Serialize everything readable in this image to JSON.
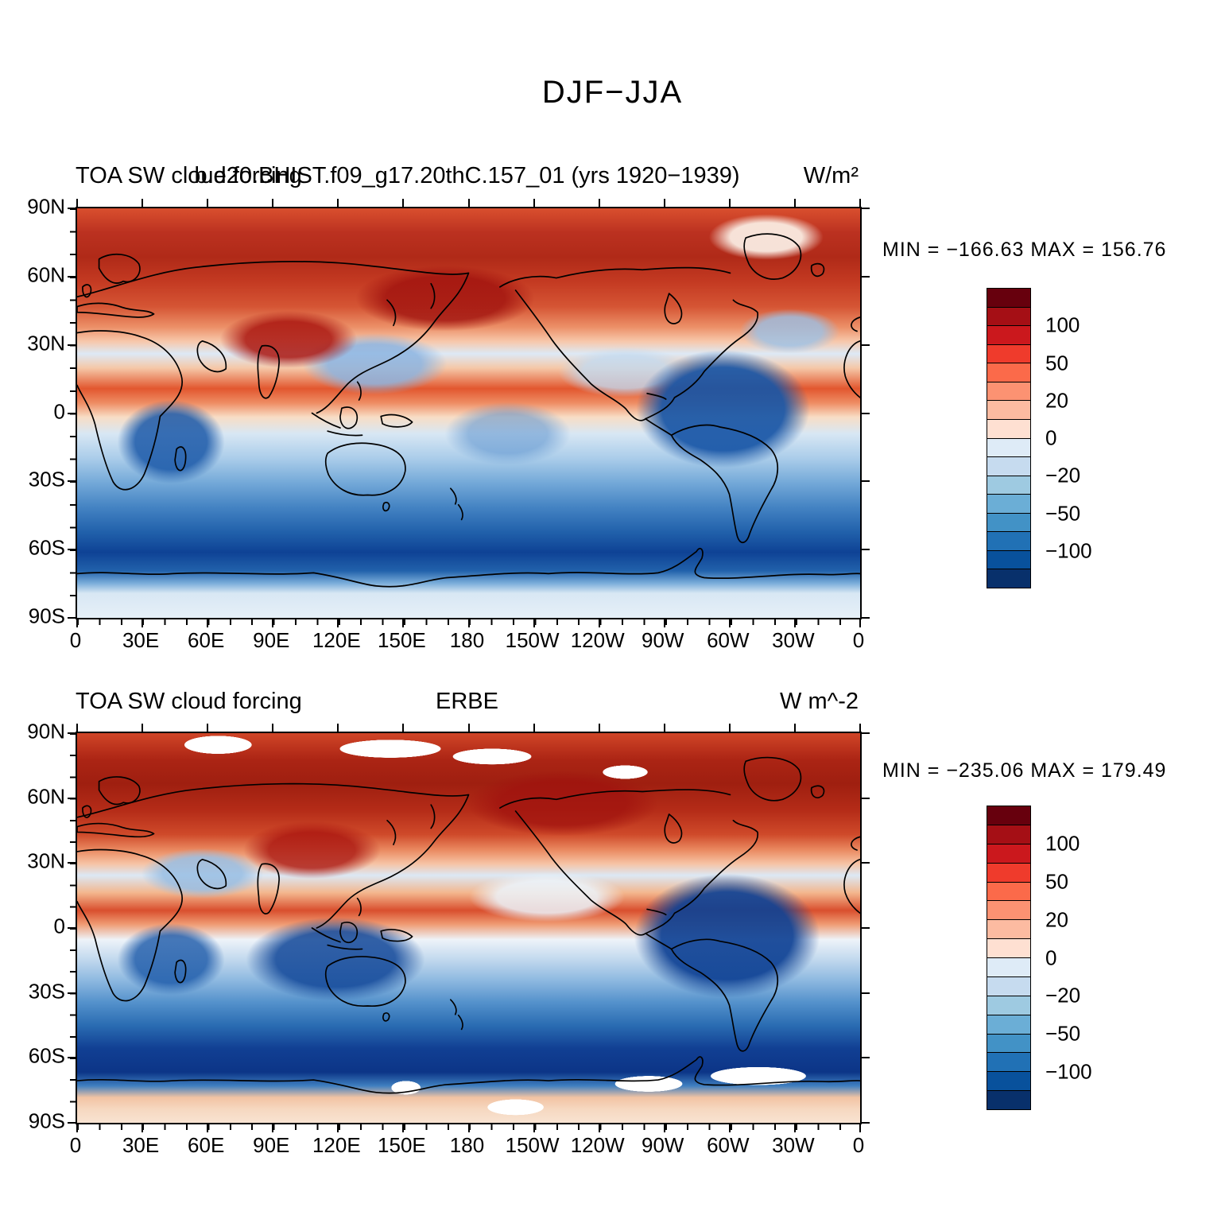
{
  "main_title": "DJF−JJA",
  "panels": [
    {
      "name": "model",
      "title_left": "TOA SW cloud forcing",
      "title_center": "b.e20.BHIST.f09_g17.20thC.157_01 (yrs 1920−1939)",
      "title_right": "W/m²",
      "minmax": "MIN = −166.63 MAX = 156.76",
      "y_ticks": [
        "90N",
        "60N",
        "30N",
        "0",
        "30S",
        "60S",
        "90S"
      ],
      "x_ticks": [
        "0",
        "30E",
        "60E",
        "90E",
        "120E",
        "150E",
        "180",
        "150W",
        "120W",
        "90W",
        "60W",
        "30W",
        "0"
      ],
      "colorbar": {
        "tick_labels": [
          "100",
          "50",
          "20",
          "0",
          "−20",
          "−50",
          "−100"
        ],
        "colors_top_to_bottom": [
          "#67000d",
          "#a50f15",
          "#cb181d",
          "#ef3b2c",
          "#fb6a4a",
          "#fc9272",
          "#fcbba1",
          "#fee0d2",
          "#deebf7",
          "#c6dbef",
          "#9ecae1",
          "#6baed6",
          "#4292c6",
          "#2171b5",
          "#08519c",
          "#08306b"
        ]
      }
    },
    {
      "name": "observations",
      "title_left": "TOA SW cloud forcing",
      "title_center": "ERBE",
      "title_right": "W m^-2",
      "minmax": "MIN = −235.06 MAX = 179.49",
      "y_ticks": [
        "90N",
        "60N",
        "30N",
        "0",
        "30S",
        "60S",
        "90S"
      ],
      "x_ticks": [
        "0",
        "30E",
        "60E",
        "90E",
        "120E",
        "150E",
        "180",
        "150W",
        "120W",
        "90W",
        "60W",
        "30W",
        "0"
      ],
      "colorbar": {
        "tick_labels": [
          "100",
          "50",
          "20",
          "0",
          "−20",
          "−50",
          "−100"
        ],
        "colors_top_to_bottom": [
          "#67000d",
          "#a50f15",
          "#cb181d",
          "#ef3b2c",
          "#fb6a4a",
          "#fc9272",
          "#fcbba1",
          "#fee0d2",
          "#deebf7",
          "#c6dbef",
          "#9ecae1",
          "#6baed6",
          "#4292c6",
          "#2171b5",
          "#08519c",
          "#08306b"
        ]
      }
    }
  ],
  "chart_data": [
    {
      "type": "heatmap",
      "panel": "model",
      "variable": "TOA SW cloud forcing",
      "dataset": "b.e20.BHIST.f09_g17.20thC.157_01",
      "years": "1920−1939",
      "season_difference": "DJF−JJA",
      "units": "W/m²",
      "projection": "cylindrical equidistant",
      "lon_range_deg": [
        0,
        360
      ],
      "lat_range_deg": [
        -90,
        90
      ],
      "min": -166.63,
      "max": 156.76,
      "colorbar_ticks": [
        100,
        50,
        20,
        0,
        -20,
        -50,
        -100
      ],
      "n_color_levels": 16,
      "legend_position": "right",
      "grid": false,
      "pattern_summary": "Strong positive (red) DJF−JJA SW cloud forcing differences across NH mid and high latitudes peaking near 50−70N; scattered weak negatives (light blue) near 25−35N and in the subtropical oceans; red ITCZ band near 10N; negative (blue) values over SH subtropics and mid-latitudes with a deep-blue minimum belt near 45−60S, including strong negative cells over South America and southern Africa; near-zero pale band over the equator and over Antarctica."
    },
    {
      "type": "heatmap",
      "panel": "observations",
      "variable": "TOA SW cloud forcing",
      "dataset": "ERBE",
      "season_difference": "DJF−JJA",
      "units": "W m^-2",
      "projection": "cylindrical equidistant",
      "lon_range_deg": [
        0,
        360
      ],
      "lat_range_deg": [
        -90,
        90
      ],
      "min": -235.06,
      "max": 179.49,
      "colorbar_ticks": [
        100,
        50,
        20,
        0,
        -20,
        -50,
        -100
      ],
      "n_color_levels": 16,
      "legend_position": "right",
      "grid": false,
      "pattern_summary": "Similar DJF−JJA structure to the model: dark-red positives across NH high latitudes, red ITCZ band near 10N, broad deep-blue negatives across SH mid-latitudes with minimum near 50−65S, pale pink band along the Antarctic coast, and white boxes of missing ERBE data near both poles."
    }
  ]
}
